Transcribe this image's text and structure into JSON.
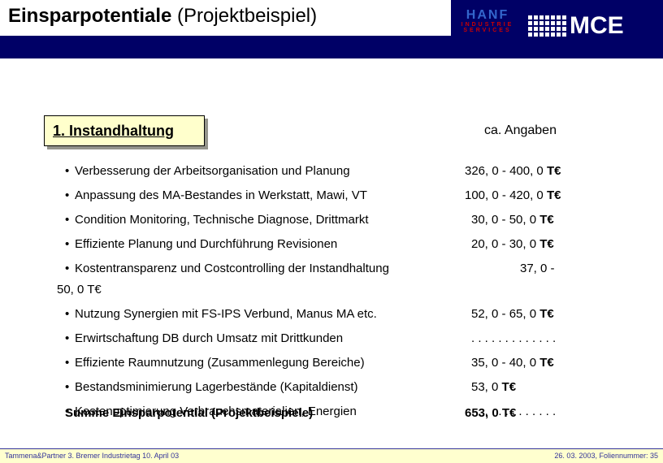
{
  "colors": {
    "header_bg": "#000066",
    "section_bg": "#ffffcc",
    "section_shadow": "#94948c",
    "footer_bg": "#ffffcf",
    "footer_text": "#333399",
    "hanf_blue": "#3366cc",
    "hanf_red": "#cc0000",
    "mce_white": "#ffffff"
  },
  "title": {
    "bold": "Einsparpotentiale",
    "rest": " (Projektbeispiel)"
  },
  "logos": {
    "hanf": {
      "line1": "HANF",
      "line2": "INDUSTRIE",
      "line3": "SERVICES"
    },
    "mce": {
      "text": "MCE",
      "dot_cols": 7,
      "dot_rows": 4
    }
  },
  "section": {
    "label": "1. Instandhaltung"
  },
  "ca_label": "ca. Angaben",
  "rows": [
    {
      "label": "Verbesserung der Arbeitsorganisation und Planung",
      "v1": "326, 0",
      "sep": " - ",
      "v2": "400, 0",
      "unit": "T€"
    },
    {
      "label": "Anpassung des MA-Bestandes in Werkstatt, Mawi, VT",
      "v1": "100, 0",
      "sep": " - ",
      "v2": "420, 0",
      "unit": "T€"
    },
    {
      "label": "Condition Monitoring, Technische Diagnose, Drittmarkt",
      "v1": "30, 0",
      "sep": " -  ",
      "v2": "50, 0",
      "unit": "T€",
      "indent": true
    },
    {
      "label": "Effiziente Planung und Durchführung Revisionen",
      "v1": "20, 0",
      "sep": " -  ",
      "v2": "30, 0",
      "unit": "T€",
      "indent": true
    },
    {
      "label": "Kostentransparenz und Costcontrolling der Instandhaltung",
      "wrap_val": "37, 0 -",
      "wrap_line2": "50, 0 T€"
    },
    {
      "label": "Nutzung Synergien mit FS-IPS Verbund, Manus MA etc.",
      "v1": "52, 0",
      "sep": " -  ",
      "v2": "65, 0",
      "unit": "T€",
      "indent": true
    },
    {
      "label": "Erwirtschaftung DB durch Umsatz mit Drittkunden",
      "dots": ". . . . . . . . . . . . .",
      "indent": true
    },
    {
      "label": "Effiziente Raumnutzung (Zusammenlegung Bereiche)",
      "v1": "35, 0",
      "sep": " -  ",
      "v2": "40, 0",
      "unit": "T€",
      "indent": true
    },
    {
      "label": "Bestandsminimierung Lagerbestände (Kapitaldienst)",
      "v1": "53, 0",
      "unit": "T€",
      "indent": true
    },
    {
      "label": "Kostenoptimierung Verbrauchsmaterialien, Energien",
      "dots": ". . . . . . . . . . . . .",
      "indent": true
    }
  ],
  "sum": {
    "label": "Summe Einsparpotential (Projektbeispiele)",
    "value": "653, 0 T€"
  },
  "footer": {
    "left": "Tammena&Partner 3. Bremer Industrietag 10. April 03",
    "right": "26. 03. 2003, Foliennummer: 35"
  }
}
